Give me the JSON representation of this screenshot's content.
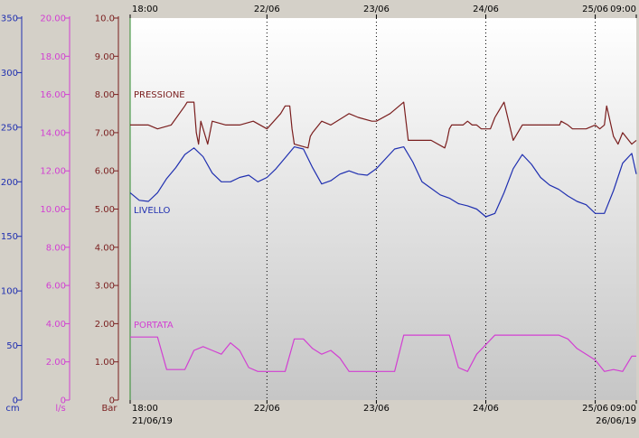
{
  "chart_data": {
    "type": "line",
    "colors": {
      "pressione": "#7a1e1e",
      "livello": "#1f2fb0",
      "portata": "#d23fd2",
      "grid": "#000000",
      "bar_axis": "#7a1e1e",
      "cm_axis": "#1f2fb0",
      "ls_axis": "#d23fd2"
    },
    "x_start_date": "21/06/19",
    "x_end_date": "26/06/19",
    "x_range_hours": [
      0,
      111
    ],
    "x_ticks": [
      {
        "hour": 0,
        "top": "18:00",
        "bottom": "18:00"
      },
      {
        "hour": 30,
        "top": "22/06",
        "bottom": "22/06"
      },
      {
        "hour": 54,
        "top": "23/06",
        "bottom": "23/06"
      },
      {
        "hour": 78,
        "top": "24/06",
        "bottom": "24/06"
      },
      {
        "hour": 102,
        "top": "25/06",
        "bottom": "25/06"
      },
      {
        "hour": 111,
        "top": "09:00",
        "bottom": "09:00"
      }
    ],
    "grid": "vertical dotted at day boundaries",
    "axes": {
      "bar": {
        "unit": "Bar",
        "range": [
          0,
          10
        ],
        "ticks": [
          "0",
          "1.00",
          "2.00",
          "3.00",
          "4.00",
          "5.00",
          "6.00",
          "7.00",
          "8.00",
          "9.00",
          "10.0"
        ]
      },
      "ls": {
        "unit": "l/s",
        "range": [
          0,
          20
        ],
        "ticks": [
          "0",
          "2.00",
          "4.00",
          "6.00",
          "8.00",
          "10.00",
          "12.00",
          "14.00",
          "16.00",
          "18.00",
          "20.00"
        ]
      },
      "cm": {
        "unit": "cm",
        "range": [
          0,
          350
        ],
        "ticks": [
          "0",
          "50",
          "100",
          "150",
          "200",
          "250",
          "300",
          "350"
        ]
      }
    },
    "series": [
      {
        "name": "PRESSIONE",
        "axis": "bar",
        "x": [
          0,
          4,
          6,
          9,
          12,
          12.5,
          14,
          14.5,
          15,
          15.5,
          17,
          18,
          21,
          24,
          27,
          30,
          33,
          34,
          35,
          35.5,
          36,
          39,
          39.5,
          40,
          42,
          44,
          48,
          50,
          53,
          54,
          57,
          60,
          61,
          63,
          66,
          69,
          69.5,
          70,
          70.5,
          73,
          74,
          75,
          76,
          77,
          79,
          80,
          82,
          84,
          86,
          90,
          93,
          94.2,
          94.5,
          96,
          97,
          100,
          102,
          103,
          104,
          104.5,
          106,
          107,
          108,
          110,
          111
        ],
        "y": [
          7.2,
          7.2,
          7.1,
          7.2,
          7.7,
          7.8,
          7.8,
          7.0,
          6.7,
          7.3,
          6.7,
          7.3,
          7.2,
          7.2,
          7.3,
          7.1,
          7.5,
          7.7,
          7.7,
          7.1,
          6.7,
          6.6,
          6.9,
          7.0,
          7.3,
          7.2,
          7.5,
          7.4,
          7.3,
          7.3,
          7.5,
          7.8,
          6.8,
          6.8,
          6.8,
          6.6,
          6.8,
          7.1,
          7.2,
          7.2,
          7.3,
          7.2,
          7.2,
          7.1,
          7.1,
          7.4,
          7.8,
          6.8,
          7.2,
          7.2,
          7.2,
          7.2,
          7.3,
          7.2,
          7.1,
          7.1,
          7.2,
          7.1,
          7.2,
          7.7,
          6.9,
          6.7,
          7.0,
          6.7,
          6.8
        ]
      },
      {
        "name": "LIVELLO",
        "axis": "cm",
        "x": [
          0,
          2,
          4,
          6,
          8,
          10,
          12,
          14,
          16,
          18,
          20,
          22,
          24,
          26,
          28,
          30,
          32,
          34,
          36,
          38,
          40,
          42,
          44,
          46,
          48,
          50,
          52,
          54,
          56,
          58,
          60,
          62,
          64,
          66,
          68,
          70,
          72,
          74,
          76,
          78,
          80,
          82,
          84,
          86,
          88,
          90,
          92,
          94,
          96,
          98,
          100,
          102,
          104,
          106,
          108,
          110,
          111
        ],
        "y": [
          190,
          183,
          182,
          190,
          203,
          213,
          225,
          231,
          223,
          208,
          200,
          200,
          204,
          206,
          200,
          204,
          212,
          222,
          232,
          230,
          213,
          198,
          201,
          207,
          210,
          207,
          206,
          212,
          221,
          230,
          232,
          218,
          200,
          194,
          188,
          185,
          180,
          178,
          175,
          168,
          171,
          190,
          212,
          225,
          216,
          204,
          197,
          193,
          187,
          182,
          179,
          171,
          171,
          192,
          217,
          226,
          207
        ]
      },
      {
        "name": "PORTATA",
        "axis": "ls",
        "x": [
          0,
          3,
          6,
          8,
          10,
          12,
          14,
          16,
          18,
          20,
          21,
          22,
          24,
          26,
          28,
          30,
          34,
          36,
          38,
          40,
          42,
          44,
          46,
          48,
          50,
          54,
          58,
          60,
          62,
          66,
          68,
          70,
          72,
          74,
          76,
          80,
          82,
          84,
          86,
          90,
          94,
          96,
          98,
          102,
          104,
          106,
          108,
          110,
          111
        ],
        "y": [
          3.3,
          3.3,
          3.3,
          1.6,
          1.6,
          1.6,
          2.6,
          2.8,
          2.6,
          2.4,
          2.7,
          3.0,
          2.6,
          1.7,
          1.5,
          1.5,
          1.5,
          3.2,
          3.2,
          2.7,
          2.4,
          2.6,
          2.2,
          1.5,
          1.5,
          1.5,
          1.5,
          3.4,
          3.4,
          3.4,
          3.4,
          3.4,
          1.7,
          1.5,
          2.4,
          3.4,
          3.4,
          3.4,
          3.4,
          3.4,
          3.4,
          3.2,
          2.7,
          2.1,
          1.5,
          1.6,
          1.5,
          2.3,
          2.3
        ]
      }
    ]
  }
}
